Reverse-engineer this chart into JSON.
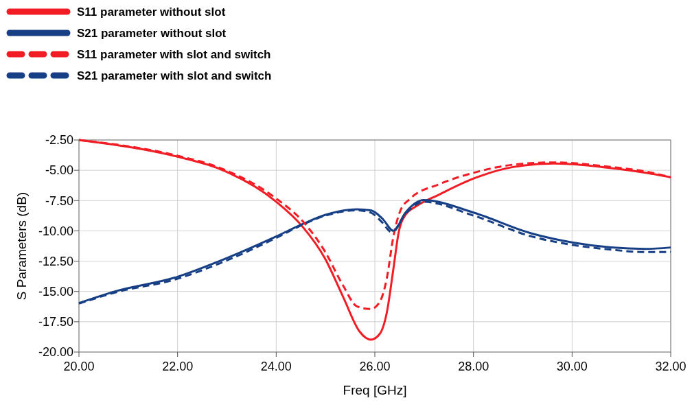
{
  "chart_data": {
    "type": "line",
    "xlabel": "Freq [GHz]",
    "ylabel": "S Parameters (dB)",
    "xlim": [
      20,
      32
    ],
    "ylim": [
      -20,
      -2.5
    ],
    "xticks": [
      {
        "value": 20,
        "label": "20.00"
      },
      {
        "value": 22,
        "label": "22.00"
      },
      {
        "value": 24,
        "label": "24.00"
      },
      {
        "value": 26,
        "label": "26.00"
      },
      {
        "value": 28,
        "label": "28.00"
      },
      {
        "value": 30,
        "label": "30.00"
      },
      {
        "value": 32,
        "label": "32.00"
      }
    ],
    "yticks": [
      {
        "value": -2.5,
        "label": "-2.50"
      },
      {
        "value": -5,
        "label": "-5.00"
      },
      {
        "value": -7.5,
        "label": "-7.50"
      },
      {
        "value": -10,
        "label": "-10.00"
      },
      {
        "value": -12.5,
        "label": "-12.50"
      },
      {
        "value": -15,
        "label": "-15.00"
      },
      {
        "value": -17.5,
        "label": "-17.50"
      },
      {
        "value": -20,
        "label": "-20.00"
      }
    ],
    "grid": true,
    "legend": "top left",
    "marker": "none",
    "series": [
      {
        "name": "S11 parameter without slot",
        "color": "#f21c24",
        "line_style": "solid",
        "x": [
          20,
          22,
          22.81,
          23.99,
          24.53,
          24.99,
          25.36,
          25.69,
          25.92,
          26.1,
          26.24,
          26.38,
          26.48,
          26.62,
          26.85,
          27.31,
          28.01,
          28.8,
          29.63,
          30,
          30.79,
          31.49,
          32
        ],
        "values": [
          -2.5,
          -3.88,
          -4.82,
          -7.56,
          -9.63,
          -12.28,
          -15.48,
          -18.3,
          -18.98,
          -18.5,
          -16.8,
          -13.03,
          -10.2,
          -8.69,
          -7.94,
          -6.99,
          -5.67,
          -4.73,
          -4.44,
          -4.5,
          -4.82,
          -5.2,
          -5.58
        ]
      },
      {
        "name": "S21 parameter without slot",
        "color": "#173f85",
        "line_style": "solid",
        "x": [
          20,
          20.72,
          22,
          22.81,
          23.99,
          24.53,
          24.99,
          25.64,
          25.92,
          26.15,
          26.38,
          26.62,
          26.99,
          28.01,
          29.17,
          30,
          30.79,
          31.49,
          32
        ],
        "values": [
          -15.96,
          -15.01,
          -13.79,
          -12.56,
          -10.48,
          -9.45,
          -8.69,
          -8.22,
          -8.31,
          -8.97,
          -10,
          -8.5,
          -7.46,
          -8.5,
          -10.2,
          -10.95,
          -11.37,
          -11.49,
          -11.37
        ]
      },
      {
        "name": "S11 parameter with slot and switch",
        "color": "#f21c24",
        "line_style": "dashed",
        "x": [
          20,
          22,
          22.81,
          23.99,
          24.57,
          24.99,
          25.36,
          25.64,
          25.92,
          26.1,
          26.24,
          26.38,
          26.52,
          26.71,
          27.31,
          28.01,
          28.8,
          29.63,
          30.79,
          31.49,
          32
        ],
        "values": [
          -2.5,
          -3.8,
          -4.73,
          -7.3,
          -9.35,
          -11.71,
          -14.54,
          -16.24,
          -16.45,
          -15.86,
          -13.98,
          -10.39,
          -8.31,
          -7.37,
          -6.14,
          -5.2,
          -4.54,
          -4.35,
          -4.73,
          -5.1,
          -5.58
        ]
      },
      {
        "name": "S21 parameter with slot and switch",
        "color": "#173f85",
        "line_style": "dashed",
        "x": [
          20,
          20.72,
          22,
          22.81,
          23.99,
          24.53,
          24.99,
          25.64,
          25.92,
          26.15,
          26.34,
          26.62,
          26.99,
          28.01,
          29.17,
          30,
          30.79,
          31.49,
          32
        ],
        "values": [
          -16,
          -15.1,
          -13.95,
          -12.75,
          -10.6,
          -9.5,
          -8.75,
          -8.3,
          -8.5,
          -9.3,
          -10.1,
          -8.6,
          -7.6,
          -8.75,
          -10.45,
          -11.15,
          -11.55,
          -11.75,
          -11.75
        ]
      }
    ]
  }
}
